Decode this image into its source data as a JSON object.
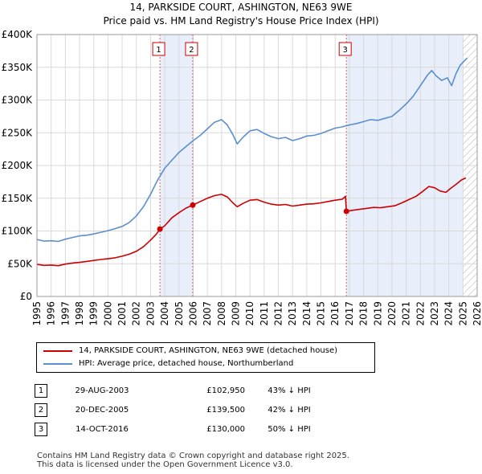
{
  "chart_data": {
    "type": "line",
    "title": "14, PARKSIDE COURT, ASHINGTON, NE63 9WE",
    "subtitle": "Price paid vs. HM Land Registry's House Price Index (HPI)",
    "xlim": [
      1995,
      2026
    ],
    "ylim": [
      0,
      400000
    ],
    "x_ticks": [
      "1995",
      "1996",
      "1997",
      "1998",
      "1999",
      "2000",
      "2001",
      "2002",
      "2003",
      "2004",
      "2005",
      "2006",
      "2007",
      "2008",
      "2009",
      "2010",
      "2011",
      "2012",
      "2013",
      "2014",
      "2015",
      "2016",
      "2017",
      "2018",
      "2019",
      "2020",
      "2021",
      "2022",
      "2023",
      "2024",
      "2025",
      "2026"
    ],
    "y_ticks": [
      {
        "value": 0,
        "label": "£0"
      },
      {
        "value": 50000,
        "label": "£50K"
      },
      {
        "value": 100000,
        "label": "£100K"
      },
      {
        "value": 150000,
        "label": "£150K"
      },
      {
        "value": 200000,
        "label": "£200K"
      },
      {
        "value": 250000,
        "label": "£250K"
      },
      {
        "value": 300000,
        "label": "£300K"
      },
      {
        "value": 350000,
        "label": "£350K"
      },
      {
        "value": 400000,
        "label": "£400K"
      }
    ],
    "projection_start": 2025.0,
    "shaded_regions": [
      [
        2003.66,
        2005.97
      ],
      [
        2016.79,
        2025.0
      ]
    ],
    "series": [
      {
        "name": "14, PARKSIDE COURT, ASHINGTON, NE63 9WE (detached house)",
        "color": "#cc0000",
        "points": [
          [
            1995.0,
            49000
          ],
          [
            1995.5,
            47500
          ],
          [
            1996.0,
            48000
          ],
          [
            1996.5,
            47000
          ],
          [
            1997.0,
            49500
          ],
          [
            1997.5,
            51000
          ],
          [
            1998.0,
            52000
          ],
          [
            1998.5,
            53500
          ],
          [
            1999.0,
            55000
          ],
          [
            1999.5,
            56500
          ],
          [
            2000.0,
            57500
          ],
          [
            2000.5,
            59000
          ],
          [
            2001.0,
            61500
          ],
          [
            2001.5,
            64500
          ],
          [
            2002.0,
            69000
          ],
          [
            2002.5,
            76000
          ],
          [
            2003.0,
            86000
          ],
          [
            2003.4,
            95000
          ],
          [
            2003.66,
            102950
          ],
          [
            2004.0,
            108000
          ],
          [
            2004.5,
            120000
          ],
          [
            2005.0,
            128000
          ],
          [
            2005.5,
            135000
          ],
          [
            2005.97,
            139500
          ],
          [
            2006.5,
            145000
          ],
          [
            2007.0,
            150000
          ],
          [
            2007.5,
            154000
          ],
          [
            2008.0,
            156000
          ],
          [
            2008.4,
            152000
          ],
          [
            2008.8,
            143000
          ],
          [
            2009.1,
            137000
          ],
          [
            2009.5,
            142000
          ],
          [
            2010.0,
            147000
          ],
          [
            2010.5,
            148000
          ],
          [
            2011.0,
            144000
          ],
          [
            2011.5,
            141000
          ],
          [
            2012.0,
            139500
          ],
          [
            2012.5,
            140500
          ],
          [
            2013.0,
            138000
          ],
          [
            2013.5,
            139500
          ],
          [
            2014.0,
            141000
          ],
          [
            2014.5,
            141500
          ],
          [
            2015.0,
            143000
          ],
          [
            2015.5,
            145000
          ],
          [
            2016.0,
            147000
          ],
          [
            2016.5,
            148500
          ],
          [
            2016.72,
            153000
          ],
          [
            2016.79,
            130000
          ],
          [
            2017.2,
            131500
          ],
          [
            2017.7,
            133000
          ],
          [
            2018.2,
            134500
          ],
          [
            2018.7,
            136000
          ],
          [
            2019.2,
            135500
          ],
          [
            2019.7,
            137000
          ],
          [
            2020.2,
            138500
          ],
          [
            2020.7,
            143000
          ],
          [
            2021.2,
            148000
          ],
          [
            2021.7,
            153000
          ],
          [
            2022.2,
            161000
          ],
          [
            2022.6,
            168000
          ],
          [
            2023.0,
            166000
          ],
          [
            2023.4,
            161000
          ],
          [
            2023.8,
            159000
          ],
          [
            2024.1,
            164500
          ],
          [
            2024.5,
            171000
          ],
          [
            2024.9,
            178000
          ],
          [
            2025.2,
            181000
          ]
        ]
      },
      {
        "name": "HPI: Average price, detached house, Northumberland",
        "color": "#5b8fd0",
        "points": [
          [
            1995.0,
            87000
          ],
          [
            1995.5,
            84500
          ],
          [
            1996.0,
            85000
          ],
          [
            1996.5,
            84000
          ],
          [
            1997.0,
            87500
          ],
          [
            1997.5,
            90000
          ],
          [
            1998.0,
            92500
          ],
          [
            1998.5,
            93500
          ],
          [
            1999.0,
            95500
          ],
          [
            1999.5,
            98000
          ],
          [
            2000.0,
            100500
          ],
          [
            2000.5,
            103500
          ],
          [
            2001.0,
            107000
          ],
          [
            2001.5,
            113000
          ],
          [
            2002.0,
            123000
          ],
          [
            2002.5,
            137000
          ],
          [
            2003.0,
            156000
          ],
          [
            2003.5,
            178000
          ],
          [
            2004.0,
            196000
          ],
          [
            2004.5,
            208000
          ],
          [
            2005.0,
            220000
          ],
          [
            2005.5,
            229000
          ],
          [
            2006.0,
            238000
          ],
          [
            2006.5,
            246000
          ],
          [
            2007.0,
            256000
          ],
          [
            2007.5,
            266000
          ],
          [
            2008.0,
            270000
          ],
          [
            2008.4,
            262000
          ],
          [
            2008.8,
            247000
          ],
          [
            2009.1,
            233000
          ],
          [
            2009.5,
            243000
          ],
          [
            2010.0,
            253000
          ],
          [
            2010.5,
            255000
          ],
          [
            2011.0,
            249000
          ],
          [
            2011.5,
            244000
          ],
          [
            2012.0,
            241000
          ],
          [
            2012.5,
            243000
          ],
          [
            2013.0,
            238000
          ],
          [
            2013.5,
            241000
          ],
          [
            2014.0,
            245000
          ],
          [
            2014.5,
            246000
          ],
          [
            2015.0,
            249000
          ],
          [
            2015.5,
            253000
          ],
          [
            2016.0,
            257000
          ],
          [
            2016.5,
            259000
          ],
          [
            2017.0,
            262000
          ],
          [
            2017.5,
            264000
          ],
          [
            2018.0,
            267000
          ],
          [
            2018.5,
            270000
          ],
          [
            2019.0,
            269000
          ],
          [
            2019.5,
            272000
          ],
          [
            2020.0,
            275000
          ],
          [
            2020.5,
            284000
          ],
          [
            2021.0,
            294000
          ],
          [
            2021.5,
            306000
          ],
          [
            2022.0,
            322000
          ],
          [
            2022.5,
            338000
          ],
          [
            2022.8,
            345000
          ],
          [
            2023.1,
            337000
          ],
          [
            2023.5,
            330000
          ],
          [
            2023.9,
            334000
          ],
          [
            2024.2,
            322000
          ],
          [
            2024.5,
            340000
          ],
          [
            2024.8,
            353000
          ],
          [
            2025.1,
            360000
          ],
          [
            2025.3,
            364000
          ]
        ]
      }
    ],
    "sales": [
      {
        "label": "1",
        "x": 2003.66,
        "price": 102950
      },
      {
        "label": "2",
        "x": 2005.97,
        "price": 139500
      },
      {
        "label": "3",
        "x": 2016.79,
        "price": 130000
      }
    ]
  },
  "legend": {
    "property_label": "14, PARKSIDE COURT, ASHINGTON, NE63 9WE (detached house)",
    "hpi_label": "HPI: Average price, detached house, Northumberland"
  },
  "transactions": [
    {
      "num": "1",
      "date": "29-AUG-2003",
      "price": "£102,950",
      "hpi": "43% ↓ HPI"
    },
    {
      "num": "2",
      "date": "20-DEC-2005",
      "price": "£139,500",
      "hpi": "42% ↓ HPI"
    },
    {
      "num": "3",
      "date": "14-OCT-2016",
      "price": "£130,000",
      "hpi": "50% ↓ HPI"
    }
  ],
  "footer": {
    "line1": "Contains HM Land Registry data © Crown copyright and database right 2025.",
    "line2": "This data is licensed under the Open Government Licence v3.0."
  }
}
